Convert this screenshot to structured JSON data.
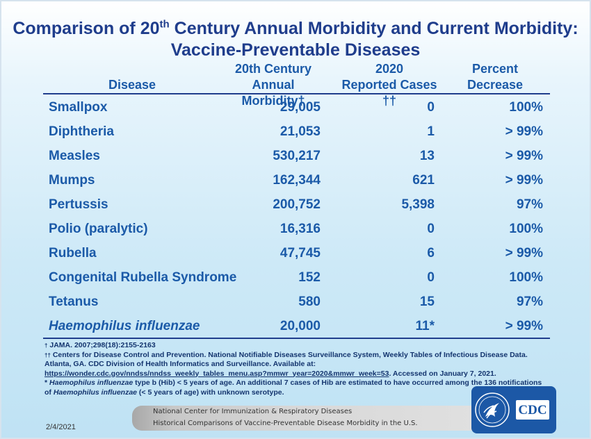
{
  "title": {
    "line1_pre": "Comparison of 20",
    "line1_sup": "th",
    "line1_post": " Century Annual Morbidity and Current Morbidity:",
    "line2": "Vaccine-Preventable Diseases"
  },
  "headers": {
    "disease": "Disease",
    "morbidity_line1": "20th Century",
    "morbidity_line2": "Annual Morbidity†",
    "cases_line1": "2020",
    "cases_line2": "Reported Cases ††",
    "percent_line1": "Percent",
    "percent_line2": "Decrease"
  },
  "rows": [
    {
      "disease": "Smallpox",
      "morbidity": "29,005",
      "cases": "0",
      "percent": "100%"
    },
    {
      "disease": "Diphtheria",
      "morbidity": "21,053",
      "cases": "1",
      "percent": "> 99%"
    },
    {
      "disease": "Measles",
      "morbidity": "530,217",
      "cases": "13",
      "percent": "> 99%"
    },
    {
      "disease": "Mumps",
      "morbidity": "162,344",
      "cases": "621",
      "percent": "> 99%"
    },
    {
      "disease": "Pertussis",
      "morbidity": "200,752",
      "cases": "5,398",
      "percent": "97%"
    },
    {
      "disease": "Polio (paralytic)",
      "morbidity": "16,316",
      "cases": "0",
      "percent": "100%"
    },
    {
      "disease": "Rubella",
      "morbidity": "47,745",
      "cases": "6",
      "percent": "> 99%"
    },
    {
      "disease": "Congenital Rubella Syndrome",
      "morbidity": "152",
      "cases": "0",
      "percent": "100%"
    },
    {
      "disease": "Tetanus",
      "morbidity": "580",
      "cases": "15",
      "percent": "97%"
    },
    {
      "disease": "Haemophilus influenzae",
      "morbidity": "20,000",
      "cases": "11*",
      "percent": "> 99%"
    }
  ],
  "footnotes": {
    "note1_mark": "†",
    "note1": " JAMA. 2007;298(18):2155-2163",
    "note2_mark": "††",
    "note2": " Centers for Disease Control and Prevention. National Notifiable Diseases Surveillance System, Weekly Tables of Infectious Disease Data. Atlanta, GA. CDC Division of Health Informatics and Surveillance. Available at:",
    "note2_link": "https://wonder.cdc.gov/nndss/nndss_weekly_tables_menu.asp?mmwr_year=2020&mmwr_week=53",
    "note2_post": ". Accessed on January 7, 2021.",
    "note3_pre": "* ",
    "note3_italic1": "Haemophilus influenzae",
    "note3_mid": " type b (Hib) < 5 years of age.  An additional 7 cases of Hib are estimated to have occurred among the 136 notifications of ",
    "note3_italic2": "Haemophilus influenzae",
    "note3_post": " (< 5 years of age) with unknown serotype."
  },
  "banner": {
    "line1": "National Center for Immunization & Respiratory Diseases",
    "line2": "Historical Comparisons of Vaccine-Preventable Disease Morbidity in the U.S."
  },
  "date": "2/4/2021",
  "logo": {
    "text": "CDC",
    "icon": "hhs-eagle-icon"
  },
  "colors": {
    "title": "#1f3d8c",
    "text": "#1b5aa8",
    "logo_bg": "#1c58a6"
  }
}
